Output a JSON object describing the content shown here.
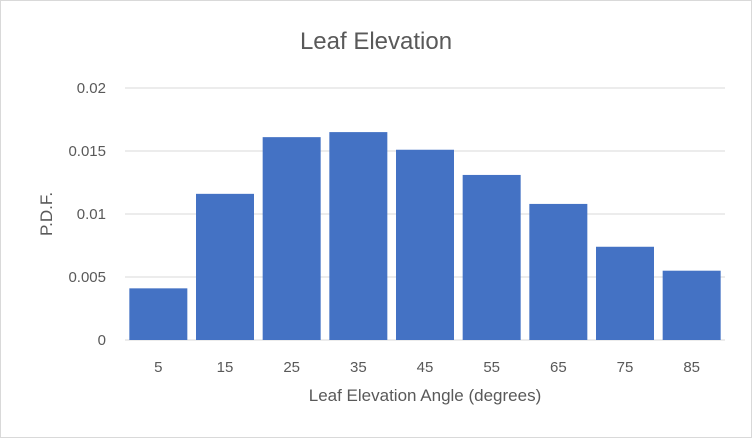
{
  "chart_data": {
    "type": "bar",
    "title": "Leaf Elevation",
    "xlabel": "Leaf Elevation Angle (degrees)",
    "ylabel": "P.D.F.",
    "categories": [
      "5",
      "15",
      "25",
      "35",
      "45",
      "55",
      "65",
      "75",
      "85"
    ],
    "values": [
      0.0041,
      0.0116,
      0.0161,
      0.0165,
      0.0151,
      0.0131,
      0.0108,
      0.0074,
      0.0055
    ],
    "ylim": [
      0,
      0.02
    ],
    "yticks": [
      "0",
      "0.005",
      "0.01",
      "0.015",
      "0.02"
    ],
    "grid": true,
    "legend": "none",
    "bar_color": "#4472C4"
  }
}
